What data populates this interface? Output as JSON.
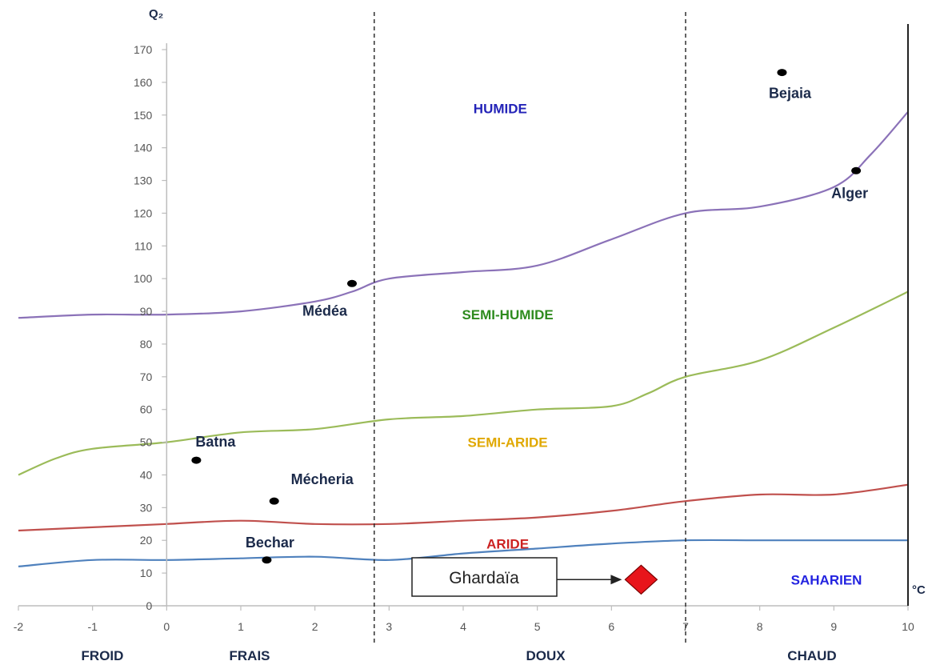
{
  "chart_data": {
    "type": "line",
    "ylabel": "Q₂",
    "xunit": "°C",
    "xlim": [
      -2,
      10
    ],
    "ylim": [
      0,
      170
    ],
    "x_ticks": [
      -2,
      -1,
      0,
      1,
      2,
      3,
      4,
      5,
      6,
      7,
      8,
      9,
      10
    ],
    "y_ticks": [
      0,
      10,
      20,
      30,
      40,
      50,
      60,
      70,
      80,
      90,
      100,
      110,
      120,
      130,
      140,
      150,
      160,
      170
    ],
    "grid": false,
    "temperature_bands": [
      {
        "label": "FROID",
        "from": -2,
        "to": 0
      },
      {
        "label": "FRAIS",
        "from": 0,
        "to": 2.8
      },
      {
        "label": "DOUX",
        "from": 2.8,
        "to": 7
      },
      {
        "label": "CHAUD",
        "from": 7,
        "to": 10
      }
    ],
    "band_dividers_x": [
      2.8,
      7
    ],
    "zones": [
      {
        "label": "HUMIDE",
        "x": 4.5,
        "y": 152,
        "color": "#2323b8"
      },
      {
        "label": "SEMI-HUMIDE",
        "x": 4.6,
        "y": 89,
        "color": "#2e8b1e"
      },
      {
        "label": "SEMI-ARIDE",
        "x": 4.6,
        "y": 50,
        "color": "#e0a800"
      },
      {
        "label": "ARIDE",
        "x": 4.6,
        "y": 19,
        "color": "#cc2222"
      },
      {
        "label": "SAHARIEN",
        "x": 8.9,
        "y": 8,
        "color": "#2323e0"
      }
    ],
    "series": [
      {
        "color": "#8b72b8",
        "x": [
          -2,
          -1,
          0,
          1,
          2,
          2.5,
          3,
          4,
          5,
          6,
          7,
          8,
          9,
          9.5,
          10
        ],
        "values": [
          88,
          89,
          89,
          90,
          93,
          96,
          100,
          102,
          104,
          112,
          120,
          122,
          128,
          138,
          151
        ]
      },
      {
        "color": "#9bbb59",
        "x": [
          -2,
          -1.5,
          -1,
          0,
          1,
          2,
          3,
          4,
          5,
          6,
          6.5,
          7,
          8,
          9,
          10
        ],
        "values": [
          40,
          45,
          48,
          50,
          53,
          54,
          57,
          58,
          60,
          61,
          65,
          70,
          75,
          85,
          96
        ]
      },
      {
        "color": "#c0504d",
        "x": [
          -2,
          -1,
          0,
          1,
          2,
          3,
          4,
          5,
          6,
          7,
          8,
          9,
          10
        ],
        "values": [
          23,
          24,
          25,
          26,
          25,
          25,
          26,
          27,
          29,
          32,
          34,
          34,
          37
        ]
      },
      {
        "color": "#4f81bd",
        "x": [
          -2,
          -1,
          0,
          1,
          2,
          3,
          4,
          5,
          6,
          7,
          8,
          9,
          10
        ],
        "values": [
          12,
          14,
          14,
          14.5,
          15,
          14,
          16,
          17.5,
          19,
          20,
          20,
          20,
          20
        ]
      }
    ],
    "stations": [
      {
        "label": "Bejaia",
        "x": 8.3,
        "y": 163
      },
      {
        "label": "Alger",
        "x": 9.3,
        "y": 133
      },
      {
        "label": "Médéa",
        "x": 2.5,
        "y": 98.5
      },
      {
        "label": "Batna",
        "x": 0.4,
        "y": 44.5
      },
      {
        "label": "Mécheria",
        "x": 1.45,
        "y": 32
      },
      {
        "label": "Bechar",
        "x": 1.35,
        "y": 14
      }
    ],
    "highlight": {
      "label": "Ghardaïa",
      "x": 6.4,
      "y": 8,
      "color": "#e8151b"
    }
  }
}
